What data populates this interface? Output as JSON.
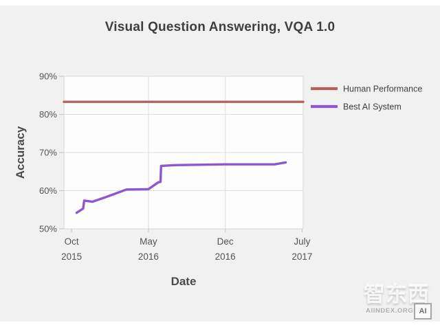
{
  "chart_data": {
    "type": "line",
    "title": "Visual Question Answering, VQA 1.0",
    "xlabel": "Date",
    "ylabel": "Accuracy",
    "x_unit": "months_since_oct_2015",
    "xlim": [
      -0.7,
      21.1
    ],
    "ylim": [
      50,
      90
    ],
    "grid": true,
    "legend_position": "right-of-plot-top",
    "y_ticks": [
      {
        "value": 90,
        "label": "90%"
      },
      {
        "value": 80,
        "label": "80%"
      },
      {
        "value": 70,
        "label": "70%"
      },
      {
        "value": 60,
        "label": "60%"
      },
      {
        "value": 50,
        "label": "50%"
      }
    ],
    "x_ticks": [
      {
        "value": 0,
        "month": "Oct",
        "year": "2015"
      },
      {
        "value": 7,
        "month": "May",
        "year": "2016"
      },
      {
        "value": 14,
        "month": "Dec",
        "year": "2016"
      },
      {
        "value": 21,
        "month": "July",
        "year": "2017"
      }
    ],
    "grid_y_values": [
      60,
      70,
      80
    ],
    "grid_x_values": [
      7,
      14
    ],
    "series": [
      {
        "name": "Human Performance",
        "color": "#b2625b",
        "line_width": 3.4,
        "points": [
          [
            -0.7,
            83.3
          ],
          [
            21.1,
            83.3
          ]
        ]
      },
      {
        "name": "Best AI System",
        "color": "#8c57cf",
        "line_width": 3.4,
        "points": [
          [
            0.45,
            54.2
          ],
          [
            1.05,
            55.3
          ],
          [
            1.15,
            57.4
          ],
          [
            1.9,
            57.1
          ],
          [
            3.2,
            58.4
          ],
          [
            5.0,
            60.3
          ],
          [
            7.0,
            60.4
          ],
          [
            7.9,
            62.2
          ],
          [
            8.1,
            62.3
          ],
          [
            8.15,
            66.5
          ],
          [
            9.5,
            66.7
          ],
          [
            14.0,
            66.9
          ],
          [
            18.5,
            66.9
          ],
          [
            19.5,
            67.4
          ]
        ]
      }
    ],
    "colors": {
      "panel_background": "#f2f1f1",
      "plot_background": "#fdfdfd",
      "gridline": "#dedede",
      "plot_border": "#d6d6d6",
      "tick": "#c9c9c9",
      "tick_label": "#545454",
      "legend_label": "#3f3f3f",
      "title": "#3e3e3e",
      "axis_label": "#4a4a4a"
    }
  },
  "watermark": {
    "brand": "智东西",
    "site": "AIINDEX.ORG",
    "logo": "AI"
  }
}
